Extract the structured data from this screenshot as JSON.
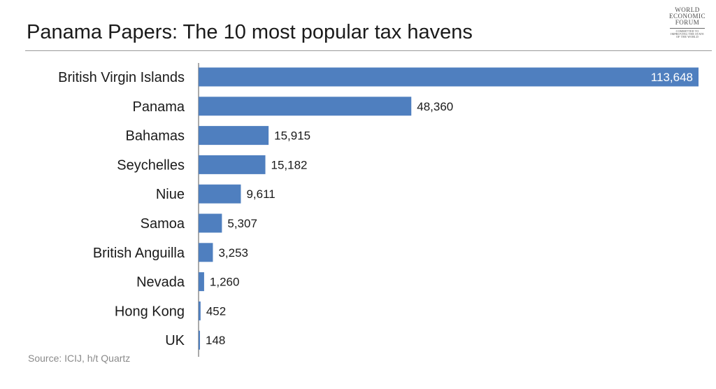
{
  "header": {
    "title": "Panama Papers: The 10 most popular tax havens"
  },
  "logo": {
    "line1": "WORLD",
    "line2": "ECONOMIC",
    "line3": "FORUM",
    "tagline1": "COMMITTED TO",
    "tagline2": "IMPROVING THE STATE",
    "tagline3": "OF THE WORLD"
  },
  "footer": {
    "source": "Source: ICIJ, h/t Quartz"
  },
  "colors": {
    "bar": "#4f7fbf",
    "axis": "#555555"
  },
  "chart_data": {
    "type": "bar",
    "orientation": "horizontal",
    "title": "Panama Papers: The 10 most popular tax havens",
    "xlabel": "",
    "ylabel": "",
    "categories": [
      "British Virgin Islands",
      "Panama",
      "Bahamas",
      "Seychelles",
      "Niue",
      "Samoa",
      "British Anguilla",
      "Nevada",
      "Hong Kong",
      "UK"
    ],
    "values": [
      113648,
      48360,
      15915,
      15182,
      9611,
      5307,
      3253,
      1260,
      452,
      148
    ],
    "value_labels": [
      "113,648",
      "48,360",
      "15,915",
      "15,182",
      "9,611",
      "5,307",
      "3,253",
      "1,260",
      "452",
      "148"
    ],
    "xlim": [
      0,
      113648
    ],
    "grid": false,
    "legend": "none"
  }
}
